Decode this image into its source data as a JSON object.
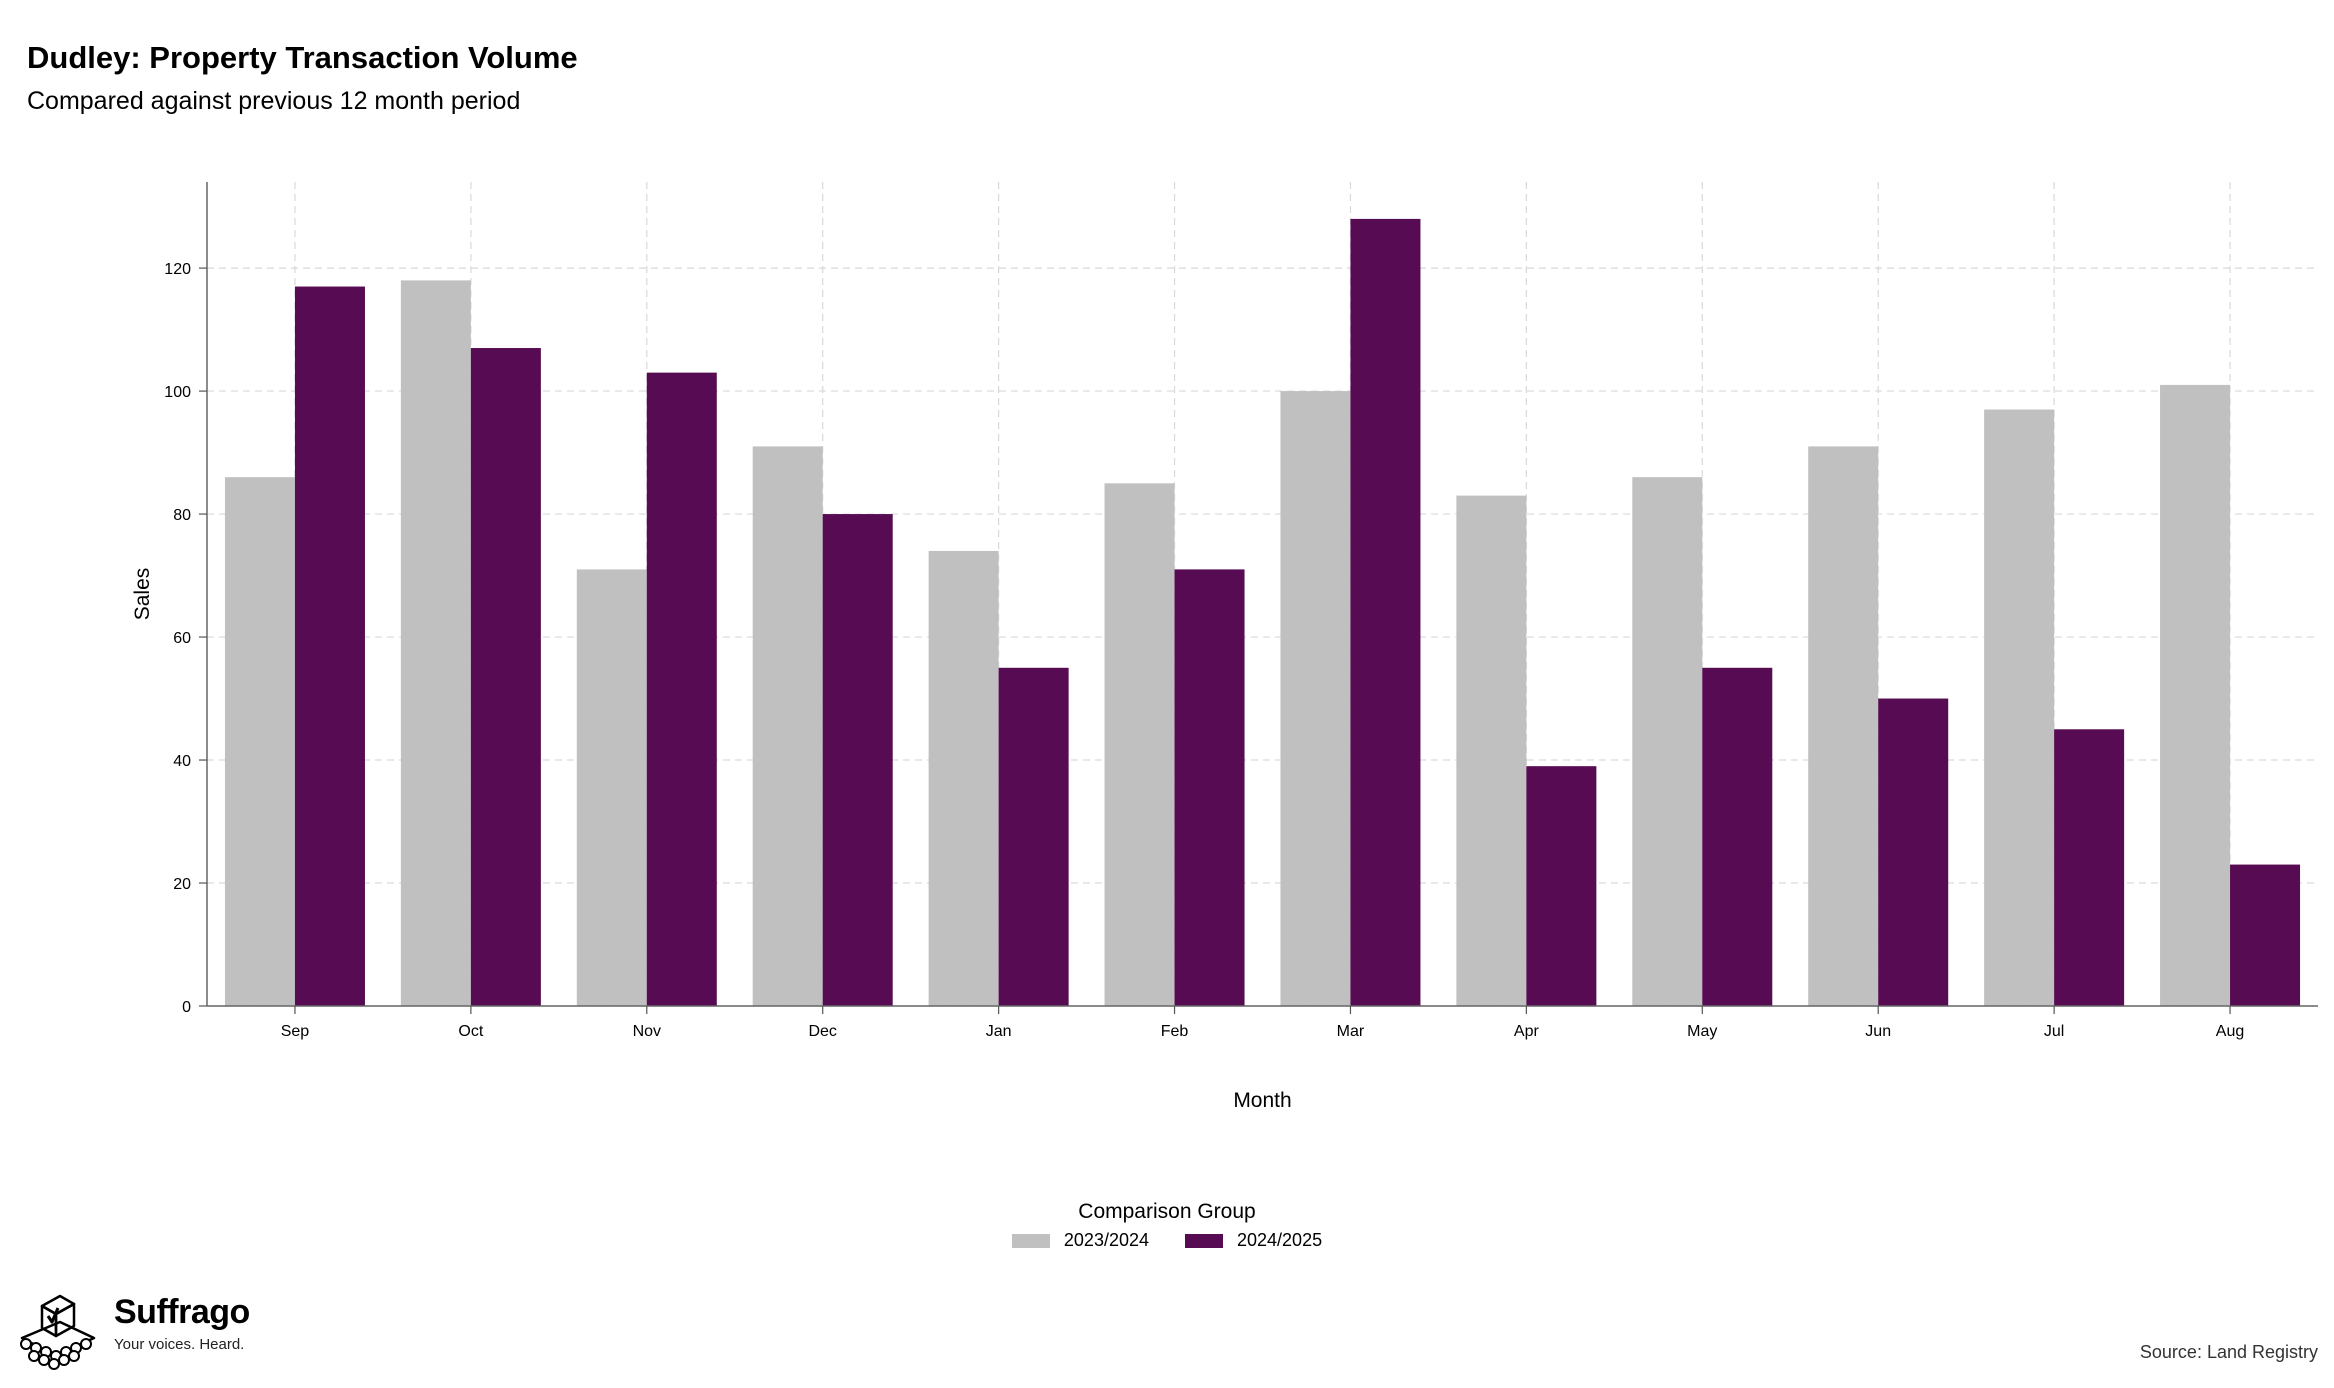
{
  "header": {
    "title": "Dudley: Property Transaction Volume",
    "subtitle": "Compared against previous 12 month period"
  },
  "chart_data": {
    "type": "bar",
    "categories": [
      "Sep",
      "Oct",
      "Nov",
      "Dec",
      "Jan",
      "Feb",
      "Mar",
      "Apr",
      "May",
      "Jun",
      "Jul",
      "Aug"
    ],
    "series": [
      {
        "name": "2023/2024",
        "color": "#c0c0c0",
        "values": [
          86,
          118,
          71,
          91,
          74,
          85,
          100,
          83,
          86,
          91,
          97,
          101
        ]
      },
      {
        "name": "2024/2025",
        "color": "#570b52",
        "values": [
          117,
          107,
          103,
          80,
          55,
          71,
          128,
          39,
          55,
          50,
          45,
          23
        ]
      }
    ],
    "xlabel": "Month",
    "ylabel": "Sales",
    "ylim": [
      0,
      134
    ],
    "yticks": [
      0,
      20,
      40,
      60,
      80,
      100,
      120
    ],
    "grid": true,
    "legend_title": "Comparison Group",
    "legend_position": "bottom"
  },
  "footer": {
    "brand_name": "Suffrago",
    "brand_tagline": "Your voices. Heard.",
    "logo_icon": "ballot-box-icon",
    "source": "Source: Land Registry"
  }
}
